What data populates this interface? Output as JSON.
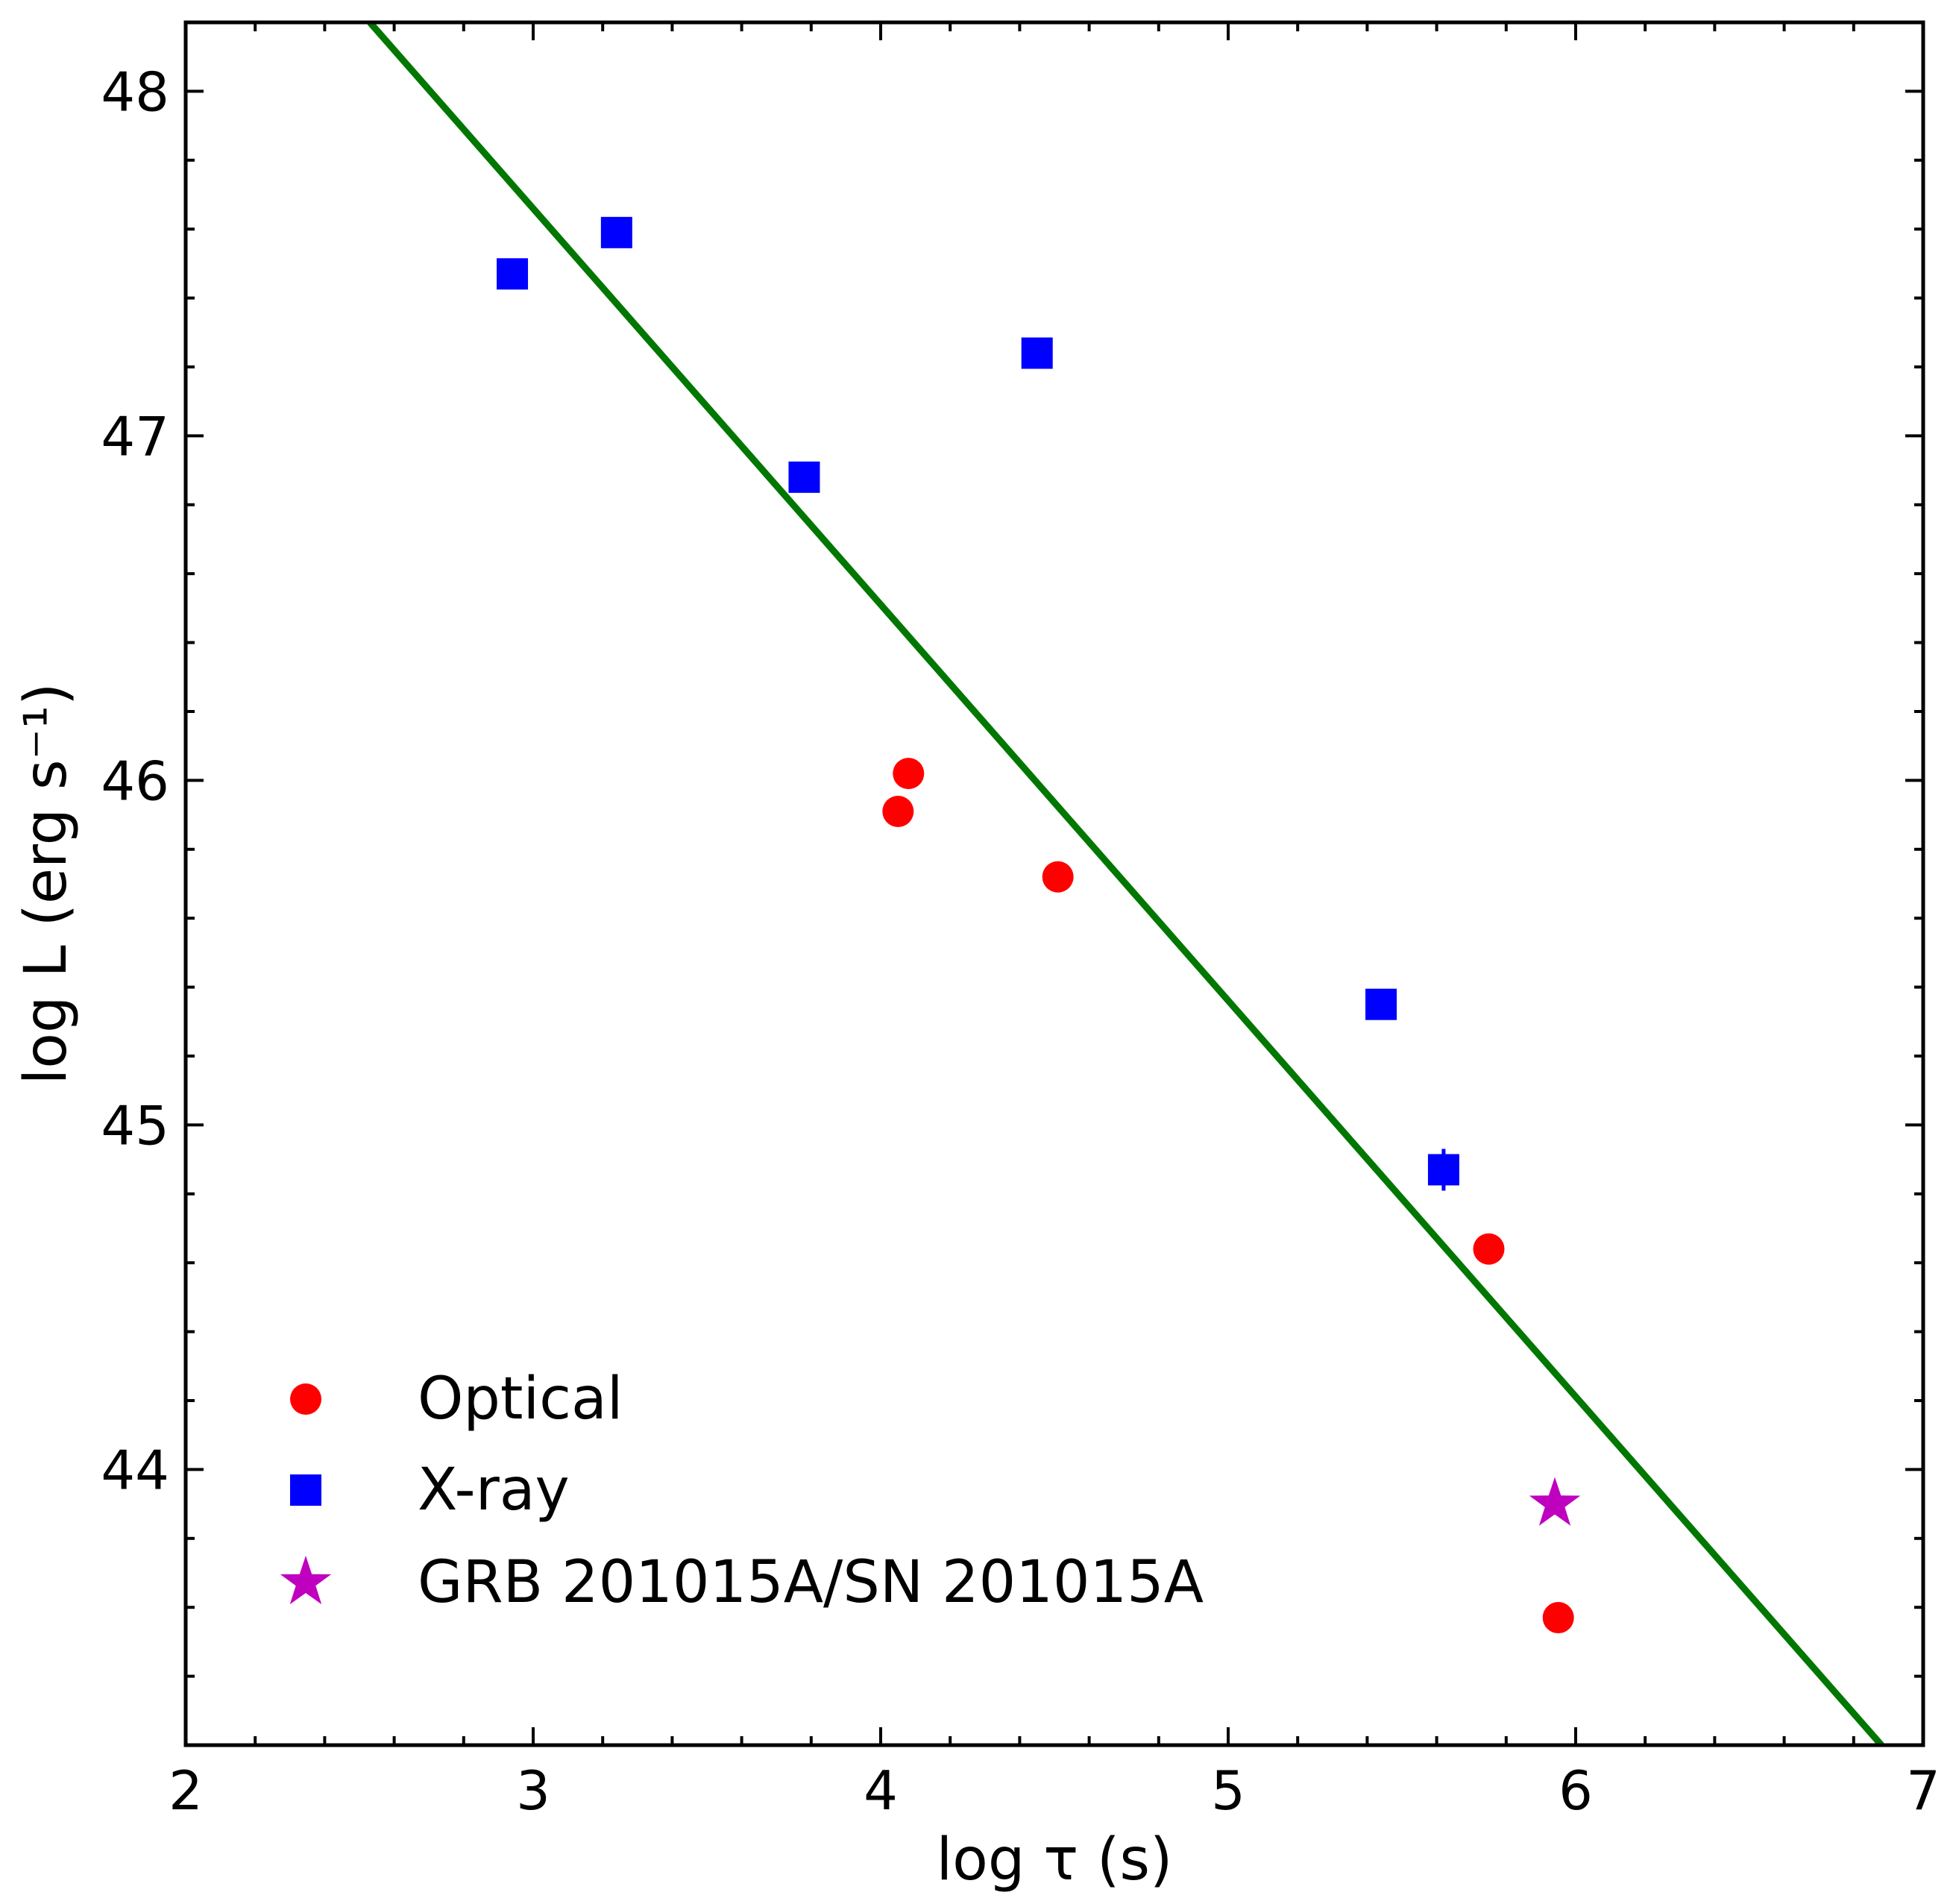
{
  "chart_data": {
    "type": "scatter",
    "xlabel": "log τ (s)",
    "ylabel": "log L (erg s⁻¹)",
    "xlim": [
      2,
      7
    ],
    "ylim": [
      43.2,
      48.2
    ],
    "xticks": [
      2,
      3,
      4,
      5,
      6,
      7
    ],
    "xtick_labels": [
      "2",
      "3",
      "4",
      "5",
      "6",
      "7"
    ],
    "yticks": [
      44,
      45,
      46,
      47,
      48
    ],
    "ytick_labels": [
      "44",
      "45",
      "46",
      "47",
      "48"
    ],
    "grid": false,
    "legend_position": "bottom-left",
    "series": [
      {
        "name": "Optical",
        "marker": "circle",
        "color": "#ff0000",
        "points": [
          [
            4.05,
            45.91
          ],
          [
            4.08,
            46.02
          ],
          [
            4.51,
            45.72
          ],
          [
            5.75,
            44.64
          ],
          [
            5.95,
            43.57
          ]
        ]
      },
      {
        "name": "X-ray",
        "marker": "square",
        "color": "#0000ff",
        "points": [
          [
            2.94,
            47.47
          ],
          [
            3.24,
            47.59
          ],
          [
            3.78,
            46.88
          ],
          [
            4.45,
            47.24
          ],
          [
            5.44,
            45.35
          ],
          [
            5.62,
            44.87
          ]
        ]
      },
      {
        "name": "GRB 201015A/SN 201015A",
        "marker": "star",
        "color": "#bf00bf",
        "points": [
          [
            5.94,
            43.9
          ]
        ]
      }
    ],
    "fit_line": {
      "color": "#007700",
      "points": [
        [
          2.53,
          48.2
        ],
        [
          6.88,
          43.2
        ]
      ]
    }
  }
}
